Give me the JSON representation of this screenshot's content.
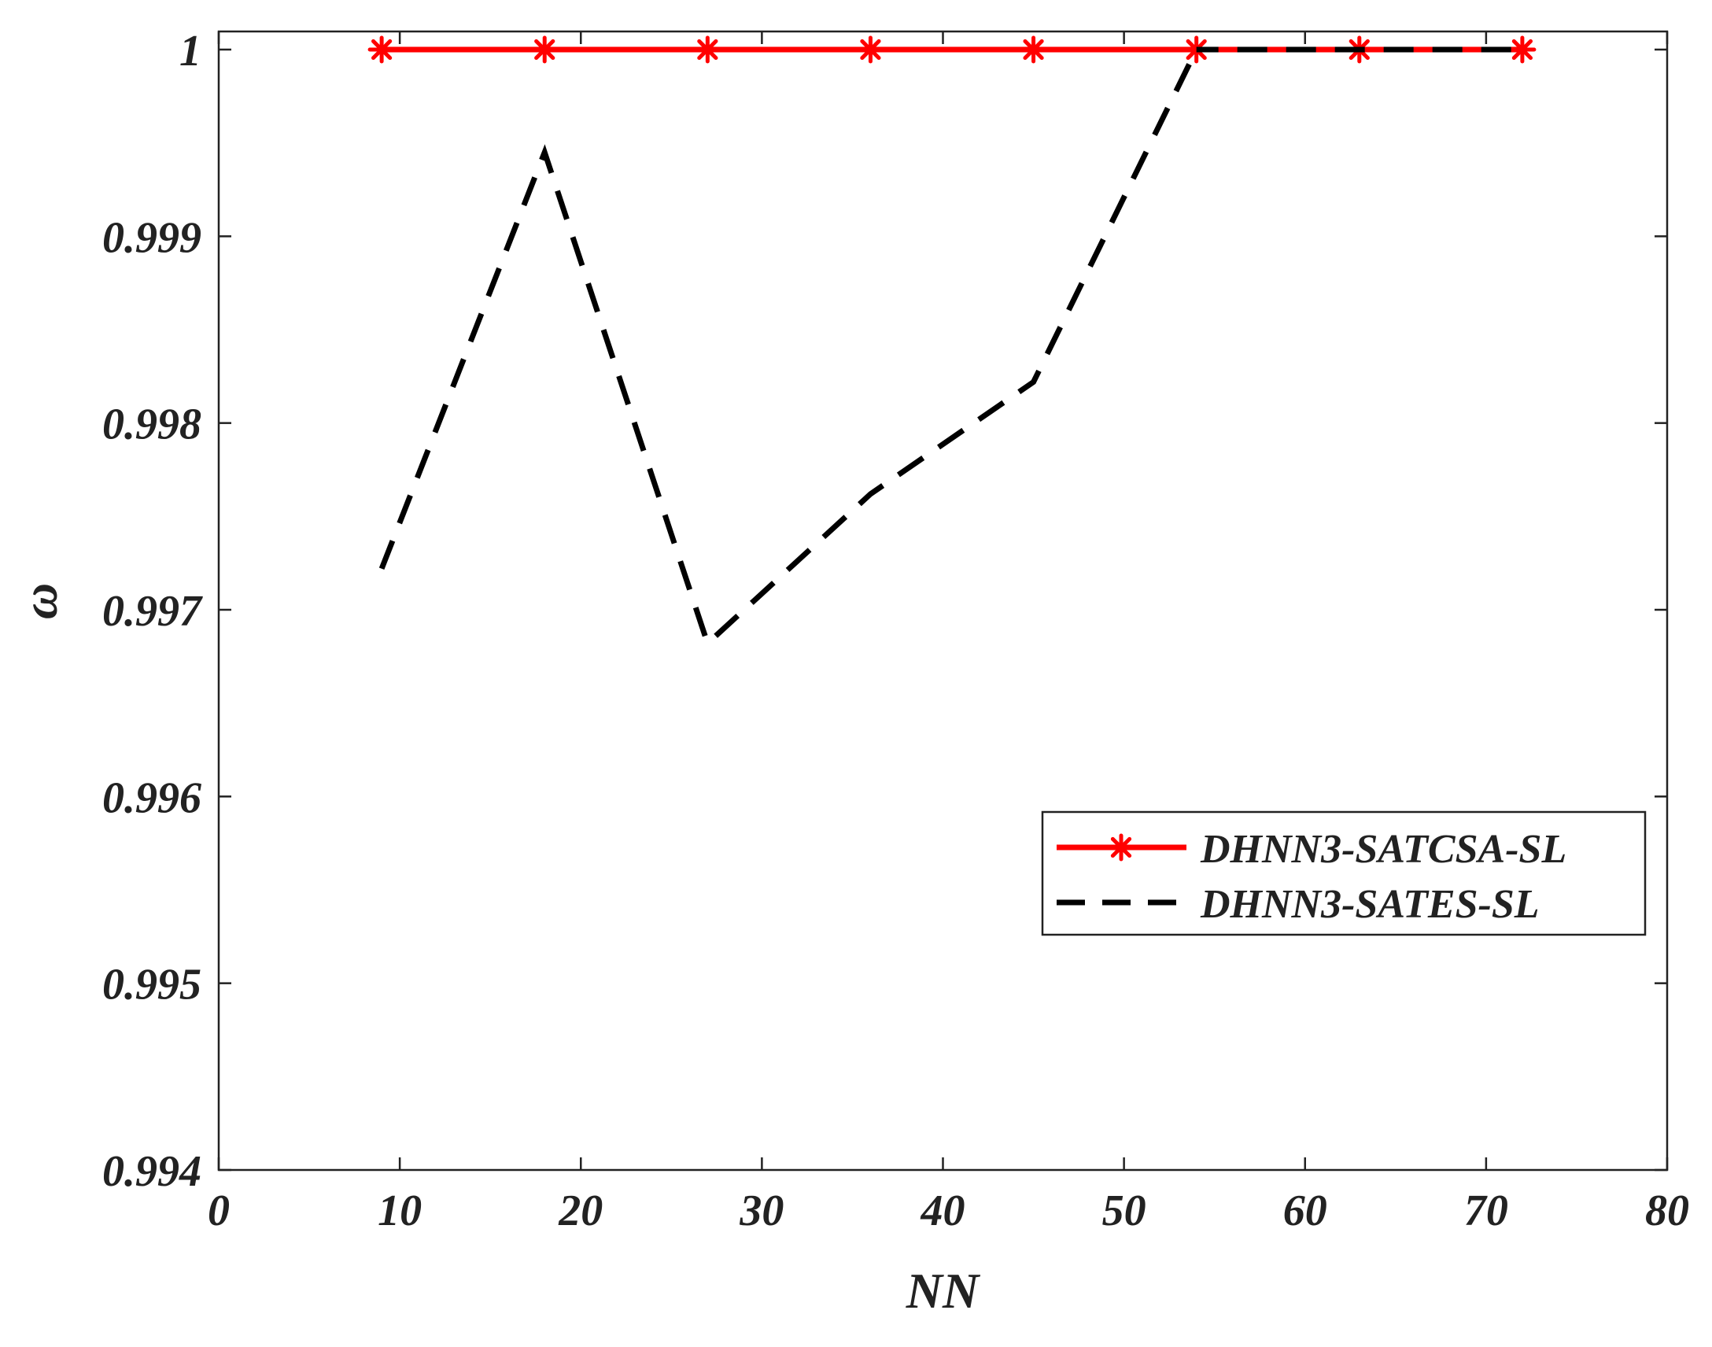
{
  "chart_data": {
    "type": "line",
    "title": "",
    "xlabel": "NN",
    "ylabel": "ω",
    "xlim": [
      0,
      80
    ],
    "ylim": [
      0.994,
      1.0001
    ],
    "xticks": [
      0,
      10,
      20,
      30,
      40,
      50,
      60,
      70,
      80
    ],
    "xtick_labels": [
      "0",
      "10",
      "20",
      "30",
      "40",
      "50",
      "60",
      "70",
      "80"
    ],
    "yticks": [
      0.994,
      0.995,
      0.996,
      0.997,
      0.998,
      0.999,
      1.0
    ],
    "ytick_labels": [
      "0.994",
      "0.995",
      "0.996",
      "0.997",
      "0.998",
      "0.999",
      "1"
    ],
    "grid": false,
    "legend_position": "center-right",
    "x": [
      9,
      18,
      27,
      36,
      45,
      54,
      63,
      72
    ],
    "series": [
      {
        "name": "DHNN3-SATCSA-SL",
        "values": [
          1,
          1,
          1,
          1,
          1,
          1,
          1,
          1
        ],
        "color": "#ff0000",
        "line_style": "solid",
        "marker": "asterisk"
      },
      {
        "name": "DHNN3-SATES-SL",
        "values": [
          0.99722,
          0.99945,
          0.99682,
          0.99762,
          0.99822,
          1,
          1,
          1
        ],
        "color": "#000000",
        "line_style": "dashed",
        "marker": "none"
      }
    ]
  }
}
